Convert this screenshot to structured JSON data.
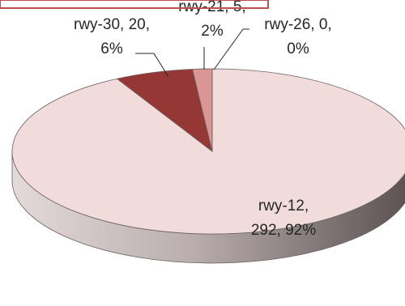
{
  "chart_data": {
    "type": "pie",
    "variant": "3d-pie",
    "title": "",
    "categories": [
      "rwy-12",
      "rwy-30",
      "rwy-21",
      "rwy-26"
    ],
    "values": [
      292,
      20,
      5,
      0
    ],
    "percentages": [
      "92%",
      "6%",
      "2%",
      "0%"
    ],
    "labels": [
      {
        "lines": [
          "rwy-12,",
          "292, 92%"
        ]
      },
      {
        "lines": [
          "rwy-30, 20,",
          "6%"
        ]
      },
      {
        "lines": [
          "rwy-21, 5,",
          "2%"
        ]
      },
      {
        "lines": [
          "rwy-26, 0,",
          "0%"
        ]
      }
    ],
    "colors": [
      "#F2DCDB",
      "#953735",
      "#D99694",
      "#D99694"
    ],
    "legend": "none",
    "frame_border_color": "#C0504D"
  }
}
